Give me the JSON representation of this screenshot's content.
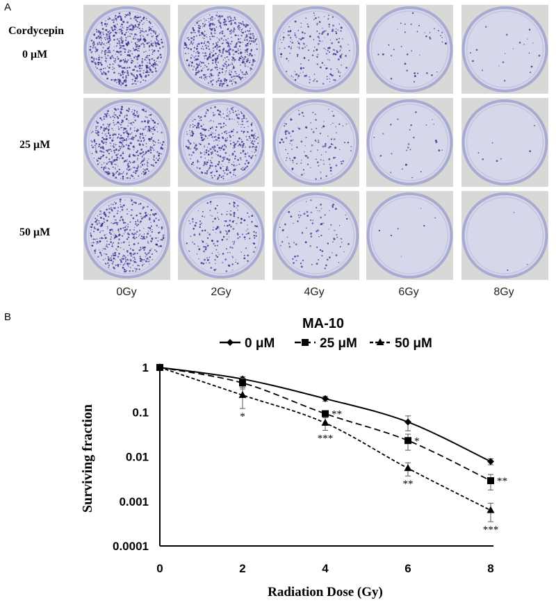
{
  "panel_a": {
    "letter": "A",
    "treatment_label": "Cordycepin",
    "row_labels": [
      "0 μM",
      "25 μM",
      "50 μM"
    ],
    "column_labels": [
      "0Gy",
      "2Gy",
      "4Gy",
      "6Gy",
      "8Gy"
    ],
    "colony_density": [
      [
        1.0,
        0.9,
        0.3,
        0.06,
        0.03
      ],
      [
        0.85,
        0.65,
        0.2,
        0.04,
        0.01
      ],
      [
        0.7,
        0.3,
        0.15,
        0.01,
        0.005
      ]
    ],
    "colors": {
      "dish": "#d6d7ea",
      "rim": "#a9aad2",
      "colony": "#3b2f8f",
      "background": "#d8d8d6"
    }
  },
  "panel_b": {
    "letter": "B"
  },
  "chart_data": {
    "type": "line",
    "title": "MA-10",
    "xlabel": "Radiation Dose (Gy)",
    "ylabel": "Surviving fraction",
    "x": [
      0,
      2,
      4,
      6,
      8
    ],
    "xticks": [
      "0",
      "2",
      "4",
      "6",
      "8"
    ],
    "yscale": "log",
    "ylim": [
      0.0001,
      1
    ],
    "yticks": [
      "1",
      "0.1",
      "0.01",
      "0.001",
      "0.0001"
    ],
    "grid": false,
    "legend_position": "top",
    "series": [
      {
        "name": "0 μM",
        "marker": "diamond",
        "dash": "solid",
        "values": [
          1.0,
          0.55,
          0.2,
          0.06,
          0.0078
        ],
        "errors": [
          0,
          0.07,
          0.025,
          0.022,
          0.0012
        ],
        "significance": [
          "",
          "",
          "",
          "",
          ""
        ]
      },
      {
        "name": "25 μM",
        "marker": "square",
        "dash": "dashed",
        "values": [
          1.0,
          0.45,
          0.092,
          0.023,
          0.0029
        ],
        "errors": [
          0,
          0.12,
          0.01,
          0.009,
          0.0011
        ],
        "significance": [
          "",
          "",
          "**",
          "*",
          "**"
        ]
      },
      {
        "name": "50 μM",
        "marker": "triangle",
        "dash": "dotted",
        "values": [
          1.0,
          0.24,
          0.057,
          0.0055,
          0.00063
        ],
        "errors": [
          0,
          0.12,
          0.018,
          0.0018,
          0.00028
        ],
        "significance": [
          "",
          "*",
          "***",
          "**",
          "***"
        ]
      }
    ],
    "color": "#000000"
  }
}
